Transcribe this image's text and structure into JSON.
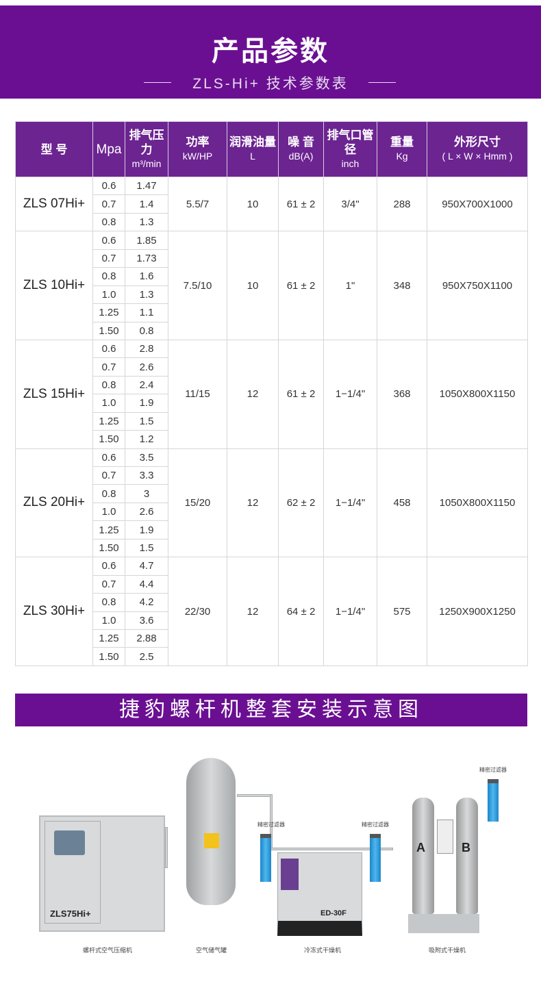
{
  "header": {
    "title": "产品参数",
    "subtitle": "ZLS-Hi+ 技术参数表"
  },
  "table": {
    "columns": [
      {
        "cn": "型 号",
        "en": ""
      },
      {
        "cn": "Mpa",
        "en": ""
      },
      {
        "cn": "排气压力",
        "en": "m³/min"
      },
      {
        "cn": "功率",
        "en": "kW/HP"
      },
      {
        "cn": "润滑油量",
        "en": "L"
      },
      {
        "cn": "噪 音",
        "en": "dB(A)"
      },
      {
        "cn": "排气口管径",
        "en": "inch"
      },
      {
        "cn": "重量",
        "en": "Kg"
      },
      {
        "cn": "外形尺寸",
        "en": "( L × W × Hmm )"
      }
    ],
    "models": [
      {
        "model": "ZLS 07Hi+",
        "rows": [
          [
            "0.6",
            "1.47"
          ],
          [
            "0.7",
            "1.4"
          ],
          [
            "0.8",
            "1.3"
          ]
        ],
        "power": "5.5/7",
        "oil": "10",
        "noise": "61 ± 2",
        "outlet": "3/4\"",
        "weight": "288",
        "size": "950X700X1000"
      },
      {
        "model": "ZLS 10Hi+",
        "rows": [
          [
            "0.6",
            "1.85"
          ],
          [
            "0.7",
            "1.73"
          ],
          [
            "0.8",
            "1.6"
          ],
          [
            "1.0",
            "1.3"
          ],
          [
            "1.25",
            "1.1"
          ],
          [
            "1.50",
            "0.8"
          ]
        ],
        "power": "7.5/10",
        "oil": "10",
        "noise": "61 ± 2",
        "outlet": "1\"",
        "weight": "348",
        "size": "950X750X1100"
      },
      {
        "model": "ZLS 15Hi+",
        "rows": [
          [
            "0.6",
            "2.8"
          ],
          [
            "0.7",
            "2.6"
          ],
          [
            "0.8",
            "2.4"
          ],
          [
            "1.0",
            "1.9"
          ],
          [
            "1.25",
            "1.5"
          ],
          [
            "1.50",
            "1.2"
          ]
        ],
        "power": "11/15",
        "oil": "12",
        "noise": "61 ± 2",
        "outlet": "1−1/4\"",
        "weight": "368",
        "size": "1050X800X1150"
      },
      {
        "model": "ZLS 20Hi+",
        "rows": [
          [
            "0.6",
            "3.5"
          ],
          [
            "0.7",
            "3.3"
          ],
          [
            "0.8",
            "3"
          ],
          [
            "1.0",
            "2.6"
          ],
          [
            "1.25",
            "1.9"
          ],
          [
            "1.50",
            "1.5"
          ]
        ],
        "power": "15/20",
        "oil": "12",
        "noise": "62 ± 2",
        "outlet": "1−1/4\"",
        "weight": "458",
        "size": "1050X800X1150"
      },
      {
        "model": "ZLS 30Hi+",
        "rows": [
          [
            "0.6",
            "4.7"
          ],
          [
            "0.7",
            "4.4"
          ],
          [
            "0.8",
            "4.2"
          ],
          [
            "1.0",
            "3.6"
          ],
          [
            "1.25",
            "2.88"
          ],
          [
            "1.50",
            "2.5"
          ]
        ],
        "power": "22/30",
        "oil": "12",
        "noise": "64 ± 2",
        "outlet": "1−1/4\"",
        "weight": "575",
        "size": "1250X900X1250"
      }
    ]
  },
  "section": {
    "title": "捷豹螺杆机整套安装示意图"
  },
  "diagram": {
    "compressor_model": "ZLS75Hi+",
    "dryer_model": "ED-30F",
    "tank_a": "A",
    "tank_b": "B",
    "filter_label": "精密过滤器",
    "labels": [
      "螺杆式空气压缩机",
      "空气储气罐",
      "冷冻式干燥机",
      "吸附式干燥机"
    ]
  },
  "colors": {
    "brand": "#6a0f92",
    "header": "#6c2491"
  }
}
